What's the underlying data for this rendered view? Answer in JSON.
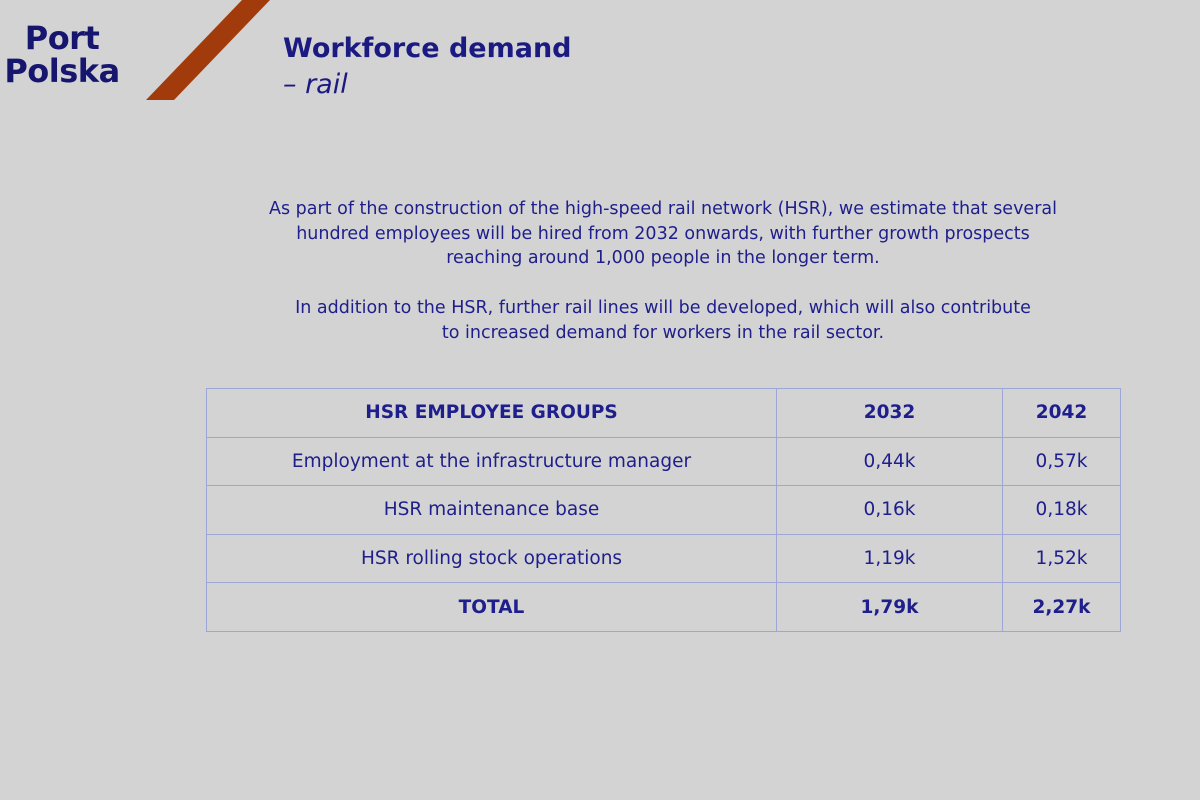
{
  "header": {
    "logo": [
      "Port",
      "Polska"
    ],
    "title": "Workforce demand",
    "subtitle": "– rail"
  },
  "paragraphs": [
    [
      "As part of the construction of the high-speed rail network (HSR), we estimate that several",
      "hundred employees will be hired from 2032 onwards, with further growth prospects",
      "reaching around 1,000 people in the longer term."
    ],
    [
      "In addition to the HSR, further rail lines will be developed, which will also contribute",
      "to increased demand for workers in the rail sector."
    ]
  ],
  "table": {
    "header": [
      "HSR EMPLOYEE GROUPS",
      "2032",
      "2042"
    ],
    "rows": [
      [
        "Employment at the infrastructure manager",
        "0,44k",
        "0,57k"
      ],
      [
        "HSR maintenance base",
        "0,16k",
        "0,18k"
      ],
      [
        "HSR rolling stock operations",
        "1,19k",
        "1,52k"
      ]
    ],
    "total": [
      "TOTAL",
      "1,79k",
      "2,27k"
    ]
  }
}
